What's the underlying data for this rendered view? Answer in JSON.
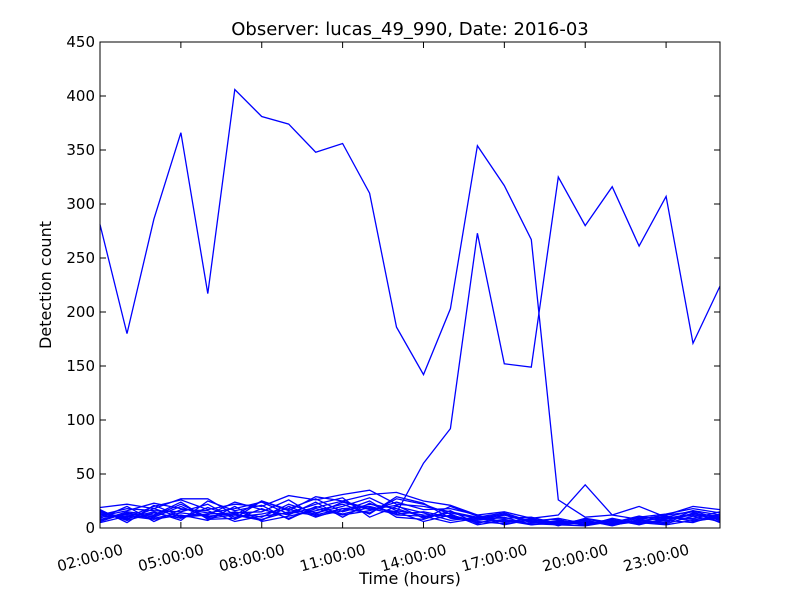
{
  "chart_data": {
    "type": "line",
    "title": "Observer: lucas_49_990, Date: 2016-03",
    "xlabel": "Time (hours)",
    "ylabel": "Detection count",
    "ylim": [
      0,
      450
    ],
    "xlim": [
      2,
      25
    ],
    "yticks": [
      0,
      50,
      100,
      150,
      200,
      250,
      300,
      350,
      400,
      450
    ],
    "xticks": [
      {
        "value": 2,
        "label": "02:00:00"
      },
      {
        "value": 5,
        "label": "05:00:00"
      },
      {
        "value": 8,
        "label": "08:00:00"
      },
      {
        "value": 11,
        "label": "11:00:00"
      },
      {
        "value": 14,
        "label": "14:00:00"
      },
      {
        "value": 17,
        "label": "17:00:00"
      },
      {
        "value": 20,
        "label": "20:00:00"
      },
      {
        "value": 23,
        "label": "23:00:00"
      }
    ],
    "line_color": "#0000ff",
    "grid": false,
    "x": [
      2,
      3,
      4,
      5,
      6,
      7,
      8,
      9,
      10,
      11,
      12,
      13,
      14,
      15,
      16,
      17,
      18,
      19,
      20,
      21,
      22,
      23,
      24,
      25
    ],
    "series": [
      {
        "values": [
          281,
          180,
          286,
          366,
          217,
          406,
          381,
          374,
          348,
          356,
          310,
          186,
          142,
          203,
          354,
          317,
          267,
          26,
          10,
          12,
          20,
          10,
          16,
          12
        ]
      },
      {
        "values": [
          10,
          12,
          9,
          14,
          11,
          13,
          8,
          15,
          12,
          18,
          20,
          14,
          60,
          92,
          273,
          152,
          149,
          325,
          280,
          316,
          261,
          307,
          171,
          224
        ]
      },
      {
        "values": [
          19,
          22,
          18,
          27,
          27,
          12,
          25,
          16,
          29,
          25,
          31,
          33,
          25,
          21,
          12,
          15,
          9,
          12,
          40,
          12,
          8,
          12,
          20,
          17
        ]
      },
      {
        "values": [
          14,
          10,
          20,
          26,
          17,
          22,
          20,
          30,
          26,
          31,
          35,
          22,
          20,
          15,
          10,
          14,
          6,
          4,
          8,
          5,
          10,
          13,
          18,
          14
        ]
      },
      {
        "values": [
          11,
          16,
          23,
          18,
          14,
          18,
          24,
          13,
          19,
          25,
          18,
          13,
          15,
          10,
          8,
          12,
          5,
          6,
          5,
          4,
          9,
          10,
          8,
          11
        ]
      },
      {
        "values": [
          8,
          13,
          11,
          22,
          10,
          15,
          10,
          22,
          14,
          20,
          28,
          16,
          12,
          11,
          5,
          8,
          4,
          3,
          2,
          6,
          4,
          8,
          12,
          9
        ]
      },
      {
        "values": [
          15,
          7,
          14,
          9,
          19,
          10,
          13,
          18,
          27,
          15,
          22,
          18,
          10,
          14,
          9,
          6,
          8,
          5,
          7,
          3,
          7,
          5,
          14,
          7
        ]
      },
      {
        "values": [
          5,
          11,
          8,
          12,
          7,
          20,
          6,
          11,
          16,
          22,
          13,
          29,
          23,
          9,
          7,
          10,
          3,
          7,
          3,
          7,
          5,
          11,
          6,
          10
        ]
      },
      {
        "values": [
          12,
          18,
          16,
          15,
          22,
          8,
          18,
          9,
          18,
          12,
          16,
          24,
          17,
          18,
          12,
          5,
          9,
          2,
          9,
          5,
          11,
          6,
          16,
          8
        ]
      },
      {
        "values": [
          17,
          5,
          21,
          11,
          13,
          14,
          15,
          26,
          11,
          16,
          25,
          10,
          8,
          16,
          4,
          12,
          6,
          9,
          4,
          8,
          3,
          9,
          9,
          15
        ]
      },
      {
        "values": [
          9,
          20,
          6,
          17,
          16,
          6,
          11,
          14,
          22,
          28,
          10,
          20,
          14,
          7,
          10,
          9,
          10,
          4,
          6,
          3,
          6,
          4,
          11,
          6
        ]
      },
      {
        "values": [
          13,
          9,
          15,
          7,
          25,
          16,
          21,
          8,
          20,
          13,
          19,
          15,
          6,
          12,
          6,
          4,
          7,
          8,
          2,
          9,
          4,
          7,
          5,
          13
        ]
      },
      {
        "values": [
          6,
          14,
          10,
          20,
          9,
          12,
          7,
          20,
          10,
          18,
          14,
          27,
          22,
          13,
          3,
          7,
          3,
          5,
          7,
          2,
          8,
          12,
          15,
          5
        ]
      },
      {
        "values": [
          16,
          8,
          18,
          10,
          12,
          24,
          17,
          12,
          24,
          10,
          23,
          12,
          11,
          5,
          9,
          13,
          5,
          6,
          3,
          6,
          5,
          3,
          7,
          9
        ]
      },
      {
        "values": [
          7,
          15,
          12,
          24,
          8,
          9,
          25,
          17,
          13,
          24,
          17,
          21,
          9,
          20,
          11,
          3,
          8,
          3,
          5,
          4,
          7,
          9,
          13,
          11
        ]
      }
    ]
  }
}
